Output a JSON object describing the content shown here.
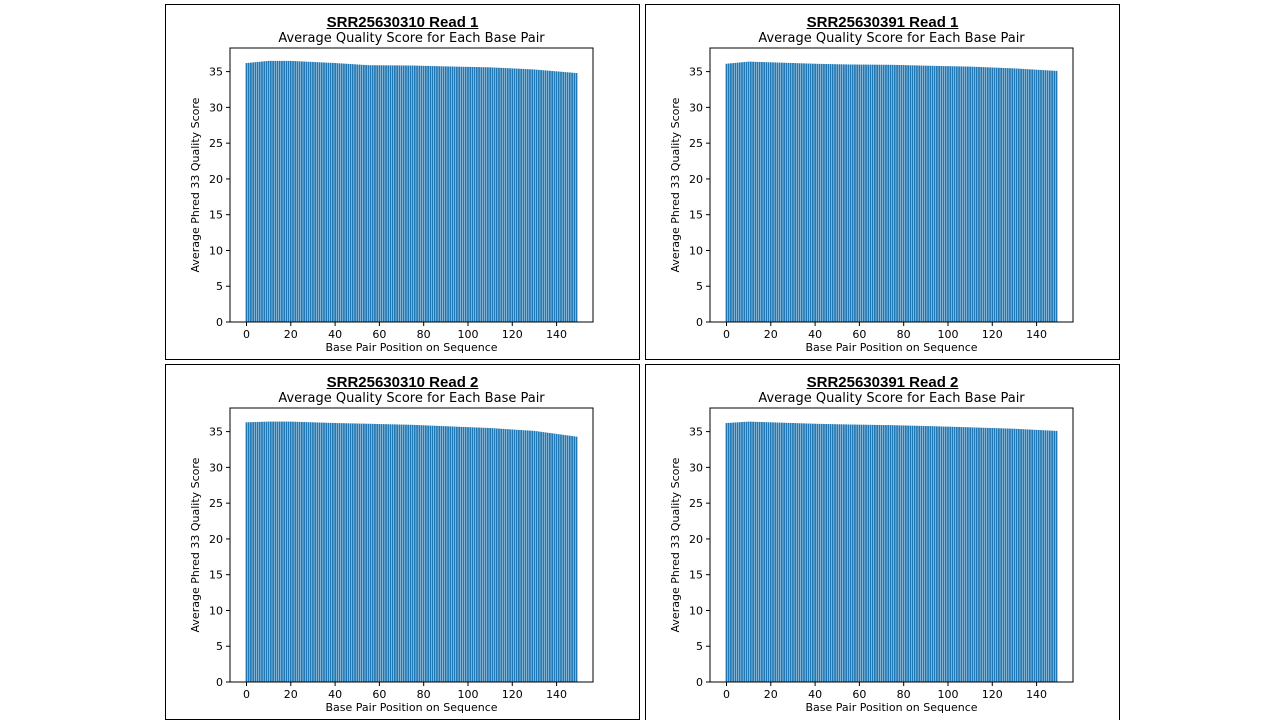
{
  "panels": [
    {
      "heading": "SRR25630310 Read 1"
    },
    {
      "heading": "SRR25630391 Read 1"
    },
    {
      "heading": "SRR25630310 Read 2"
    },
    {
      "heading": "SRR25630391 Read 2"
    }
  ],
  "colors": {
    "bar": "#1f77b4",
    "axis": "#000000"
  },
  "chart_data": [
    {
      "type": "bar",
      "title": "Average Quality Score for Each Base Pair",
      "xlabel": "Base Pair Position on Sequence",
      "ylabel": "Average Phred 33 Quality Score",
      "xlim": [
        -7.45,
        156.45
      ],
      "ylim": [
        0,
        38.3
      ],
      "xticks": [
        0,
        20,
        40,
        60,
        80,
        100,
        120,
        140
      ],
      "yticks": [
        0,
        5,
        10,
        15,
        20,
        25,
        30,
        35
      ],
      "grid": false,
      "legend": "none",
      "x_start": 0,
      "x_end": 149,
      "profile_x": [
        0,
        10,
        20,
        40,
        55,
        75,
        94,
        110,
        130,
        149
      ],
      "profile_y": [
        36.2,
        36.5,
        36.5,
        36.2,
        35.9,
        35.85,
        35.7,
        35.6,
        35.3,
        34.8
      ]
    },
    {
      "type": "bar",
      "title": "Average Quality Score for Each Base Pair",
      "xlabel": "Base Pair Position on Sequence",
      "ylabel": "Average Phred 33 Quality Score",
      "xlim": [
        -7.45,
        156.45
      ],
      "ylim": [
        0,
        38.3
      ],
      "xticks": [
        0,
        20,
        40,
        60,
        80,
        100,
        120,
        140
      ],
      "yticks": [
        0,
        5,
        10,
        15,
        20,
        25,
        30,
        35
      ],
      "grid": false,
      "legend": "none",
      "x_start": 0,
      "x_end": 149,
      "profile_x": [
        0,
        10,
        20,
        40,
        55,
        75,
        94,
        110,
        130,
        149
      ],
      "profile_y": [
        36.1,
        36.4,
        36.3,
        36.1,
        36.0,
        35.95,
        35.8,
        35.7,
        35.45,
        35.1
      ]
    },
    {
      "type": "bar",
      "title": "Average Quality Score for Each Base Pair",
      "xlabel": "Base Pair Position on Sequence",
      "ylabel": "Average Phred 33 Quality Score",
      "xlim": [
        -7.45,
        156.45
      ],
      "ylim": [
        0,
        38.3
      ],
      "xticks": [
        0,
        20,
        40,
        60,
        80,
        100,
        120,
        140
      ],
      "yticks": [
        0,
        5,
        10,
        15,
        20,
        25,
        30,
        35
      ],
      "grid": false,
      "legend": "none",
      "x_start": 0,
      "x_end": 149,
      "profile_x": [
        0,
        10,
        20,
        40,
        55,
        75,
        94,
        110,
        130,
        149
      ],
      "profile_y": [
        36.3,
        36.4,
        36.4,
        36.2,
        36.1,
        35.95,
        35.7,
        35.5,
        35.1,
        34.3
      ]
    },
    {
      "type": "bar",
      "title": "Average Quality Score for Each Base Pair",
      "xlabel": "Base Pair Position on Sequence",
      "ylabel": "Average Phred 33 Quality Score",
      "xlim": [
        -7.45,
        156.45
      ],
      "ylim": [
        0,
        38.3
      ],
      "xticks": [
        0,
        20,
        40,
        60,
        80,
        100,
        120,
        140
      ],
      "yticks": [
        0,
        5,
        10,
        15,
        20,
        25,
        30,
        35
      ],
      "grid": false,
      "legend": "none",
      "x_start": 0,
      "x_end": 149,
      "profile_x": [
        0,
        10,
        20,
        40,
        55,
        75,
        94,
        110,
        130,
        149
      ],
      "profile_y": [
        36.2,
        36.4,
        36.3,
        36.1,
        36.0,
        35.9,
        35.75,
        35.6,
        35.4,
        35.1
      ]
    }
  ]
}
